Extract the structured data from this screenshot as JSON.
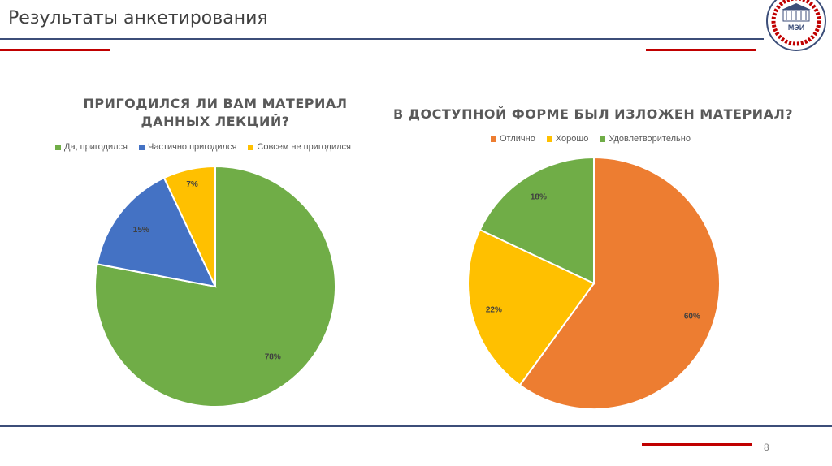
{
  "slide": {
    "title": "Результаты анкетирования",
    "page_number": "8"
  },
  "logo": {
    "text": "МЭИ"
  },
  "chart_data": [
    {
      "type": "pie",
      "title": "ПРИГОДИЛСЯ ЛИ ВАМ МАТЕРИАЛ ДАННЫХ ЛЕКЦИЙ?",
      "title_lines": [
        "ПРИГОДИЛСЯ ЛИ ВАМ МАТЕРИАЛ",
        "ДАННЫХ ЛЕКЦИЙ?"
      ],
      "categories": [
        "Да, пригодился",
        "Частично пригодился",
        "Совсем не пригодился"
      ],
      "values": [
        78,
        15,
        7
      ],
      "labels": [
        "78%",
        "15%",
        "7%"
      ],
      "colors": [
        "#70ad47",
        "#4472c4",
        "#ffc000"
      ],
      "legend_position": "top"
    },
    {
      "type": "pie",
      "title": "В ДОСТУПНОЙ ФОРМЕ БЫЛ ИЗЛОЖЕН МАТЕРИАЛ?",
      "title_lines": [
        "В ДОСТУПНОЙ ФОРМЕ БЫЛ ИЗЛОЖЕН МАТЕРИАЛ?"
      ],
      "categories": [
        "Отлично",
        "Хорошо",
        "Удовлетворительно"
      ],
      "values": [
        60,
        22,
        18
      ],
      "labels": [
        "60%",
        "22%",
        "18%"
      ],
      "colors": [
        "#ed7d31",
        "#ffc000",
        "#70ad47"
      ],
      "legend_position": "top"
    }
  ]
}
